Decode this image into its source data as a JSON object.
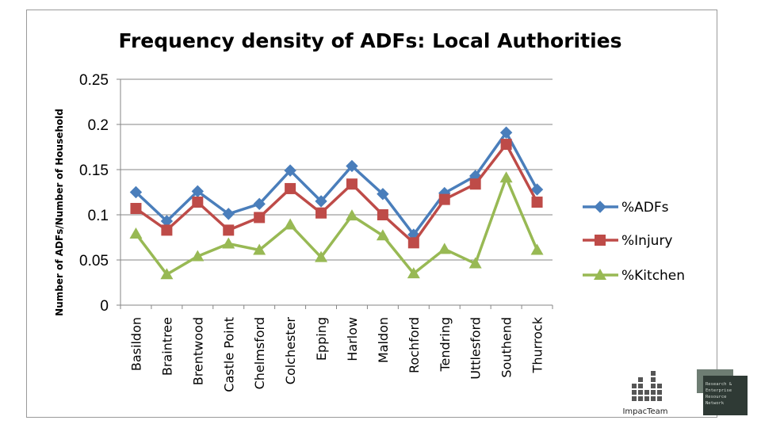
{
  "chart_data": {
    "type": "line",
    "title": "Frequency density of ADFs: Local Authorities",
    "xlabel": "",
    "ylabel": "Number of ADFs/Number of Household",
    "ylim": [
      0,
      0.25
    ],
    "yticks": [
      "0",
      "0.05",
      "0.1",
      "0.15",
      "0.2",
      "0.25"
    ],
    "categories": [
      "Basildon",
      "Braintree",
      "Brentwood",
      "Castle Point",
      "Chelmsford",
      "Colchester",
      "Epping",
      "Harlow",
      "Maldon",
      "Rochford",
      "Tendring",
      "Uttlesford",
      "Southend",
      "Thurrock"
    ],
    "series": [
      {
        "name": "%ADFs",
        "marker": "diamond",
        "color": "#4a7ebb",
        "values": [
          0.125,
          0.093,
          0.126,
          0.101,
          0.112,
          0.149,
          0.115,
          0.154,
          0.123,
          0.078,
          0.124,
          0.143,
          0.191,
          0.128
        ]
      },
      {
        "name": "%Injury",
        "marker": "square",
        "color": "#be4b48",
        "values": [
          0.107,
          0.083,
          0.114,
          0.083,
          0.097,
          0.129,
          0.102,
          0.134,
          0.1,
          0.069,
          0.117,
          0.134,
          0.178,
          0.114
        ]
      },
      {
        "name": "%Kitchen",
        "marker": "triangle",
        "color": "#98b954",
        "values": [
          0.079,
          0.034,
          0.054,
          0.068,
          0.061,
          0.089,
          0.053,
          0.099,
          0.077,
          0.035,
          0.062,
          0.046,
          0.141,
          0.061
        ]
      }
    ],
    "grid": true,
    "legend": "right"
  },
  "branding": {
    "logo_label": "ImpacTeam",
    "badge_lines": [
      "Research &",
      "Enterprise",
      "Resource",
      "Network"
    ]
  }
}
